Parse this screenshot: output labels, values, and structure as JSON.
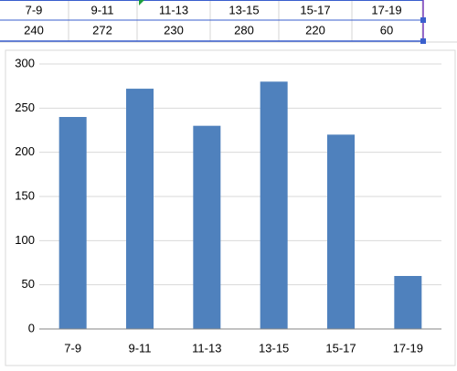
{
  "chart_data": {
    "type": "bar",
    "categories": [
      "7-9",
      "9-11",
      "11-13",
      "13-15",
      "15-17",
      "17-19"
    ],
    "values": [
      240,
      272,
      230,
      280,
      220,
      60
    ],
    "color": "#4f81bd",
    "ylim": [
      0,
      300
    ],
    "yticks": [
      0,
      50,
      100,
      150,
      200,
      250,
      300
    ],
    "grid": true
  }
}
